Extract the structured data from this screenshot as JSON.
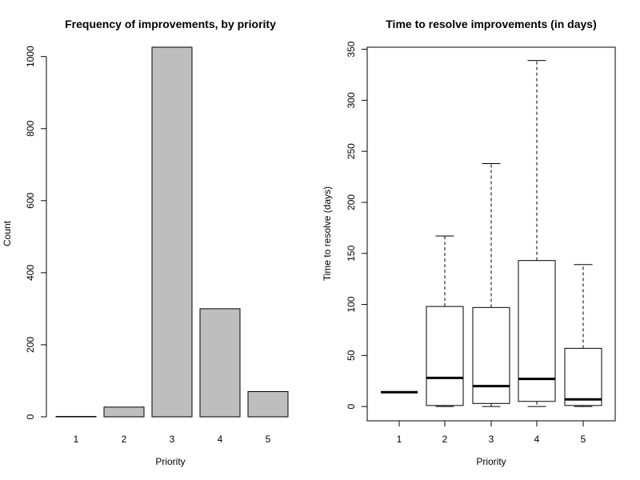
{
  "chart_data": [
    {
      "type": "bar",
      "title": "Frequency of improvements, by priority",
      "xlabel": "Priority",
      "ylabel": "Count",
      "categories": [
        "1",
        "2",
        "3",
        "4",
        "5"
      ],
      "values": [
        1,
        27,
        1026,
        300,
        70
      ],
      "ylim": [
        0,
        1026
      ],
      "yticks": [
        "0",
        "200",
        "400",
        "600",
        "800",
        "1000"
      ],
      "bar_color": "#bebebe",
      "grid": false
    },
    {
      "type": "boxplot",
      "title": "Time to resolve improvements (in days)",
      "xlabel": "Priority",
      "ylabel": "Time to resolve (days)",
      "categories": [
        "1",
        "2",
        "3",
        "4",
        "5"
      ],
      "ylim": [
        -14,
        352
      ],
      "yticks": [
        "0",
        "50",
        "100",
        "150",
        "200",
        "250",
        "300",
        "350"
      ],
      "boxes": [
        {
          "min": 14,
          "q1": 14,
          "median": 14,
          "q3": 14,
          "max": 14
        },
        {
          "min": 0,
          "q1": 1,
          "median": 28,
          "q3": 98,
          "max": 167
        },
        {
          "min": 0,
          "q1": 3,
          "median": 20,
          "q3": 97,
          "max": 238
        },
        {
          "min": 0,
          "q1": 5,
          "median": 27,
          "q3": 143,
          "max": 339
        },
        {
          "min": 0,
          "q1": 1,
          "median": 7,
          "q3": 57,
          "max": 139
        }
      ],
      "grid": false
    }
  ]
}
